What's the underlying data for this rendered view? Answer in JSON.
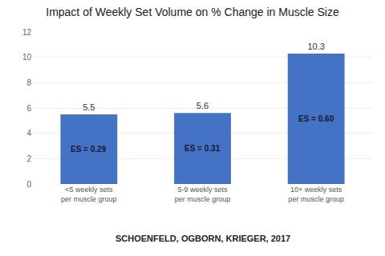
{
  "chart_data": {
    "type": "bar",
    "title": "Impact of Weekly Set Volume on % Change in Muscle Size",
    "categories": [
      "<5 weekly sets per muscle group",
      "5-9 weekly sets per muscle group",
      "10+ weekly sets per muscle group"
    ],
    "values": [
      5.5,
      5.6,
      10.3
    ],
    "color": "#4472C4",
    "ylim": [
      0,
      12
    ],
    "yticks": [
      0,
      2,
      4,
      6,
      8,
      10,
      12
    ],
    "grid": true,
    "data_labels": true,
    "annotations": [
      "ES = 0.29",
      "ES = 0.31",
      "ES = 0.60",
      "SCHOENFELD, OGBORN, KRIEGER, 2017"
    ]
  }
}
